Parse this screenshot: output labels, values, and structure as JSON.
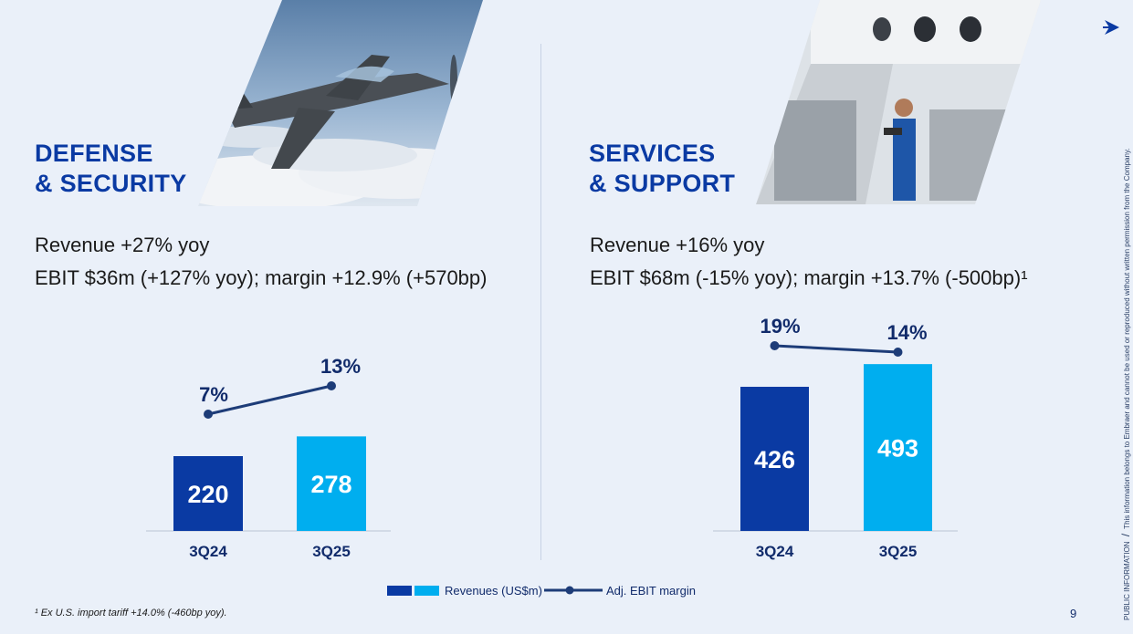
{
  "left_panel": {
    "title_line1": "DEFENSE",
    "title_line2": "& SECURITY",
    "kpi_revenue": "Revenue +27% yoy",
    "kpi_ebit": "EBIT $36m (+127% yoy); margin +12.9% (+570bp)"
  },
  "right_panel": {
    "title_line1": "SERVICES",
    "title_line2": "& SUPPORT",
    "kpi_revenue": "Revenue +16% yoy",
    "kpi_ebit": "EBIT $68m (-15% yoy); margin +13.7% (-500bp)¹"
  },
  "chart_data": [
    {
      "type": "bar",
      "categories": [
        "3Q24",
        "3Q25"
      ],
      "series": [
        {
          "name": "Revenues (US$m)",
          "values": [
            220,
            278
          ],
          "colors": [
            "#0a3aa3",
            "#00aeef"
          ]
        },
        {
          "name": "Adj. EBIT margin",
          "type": "line",
          "values": [
            7,
            13
          ],
          "labels": [
            "7%",
            "13%"
          ],
          "color": "#1d3c78"
        }
      ],
      "bar_labels": [
        "220",
        "278"
      ]
    },
    {
      "type": "bar",
      "categories": [
        "3Q24",
        "3Q25"
      ],
      "series": [
        {
          "name": "Revenues (US$m)",
          "values": [
            426,
            493
          ],
          "colors": [
            "#0a3aa3",
            "#00aeef"
          ]
        },
        {
          "name": "Adj. EBIT margin",
          "type": "line",
          "values": [
            19,
            14
          ],
          "labels": [
            "19%",
            "14%"
          ],
          "color": "#1d3c78"
        }
      ],
      "bar_labels": [
        "426",
        "493"
      ]
    }
  ],
  "legend": {
    "revenues_label": "Revenues (US$m)",
    "ebit_label": "Adj. EBIT margin"
  },
  "footnote": "¹ Ex U.S. import tariff +14.0% (-460bp yoy).",
  "page_number": "9",
  "side_text": {
    "classification": "PUBLIC INFORMATION",
    "separator": "/",
    "notice": "This information belongs to Embraer and cannot be used or reproduced without written permission from the Company."
  },
  "icons": {
    "logo": "arrow-icon",
    "photo_left": "aircraft-photo",
    "photo_right": "maintenance-photo"
  }
}
